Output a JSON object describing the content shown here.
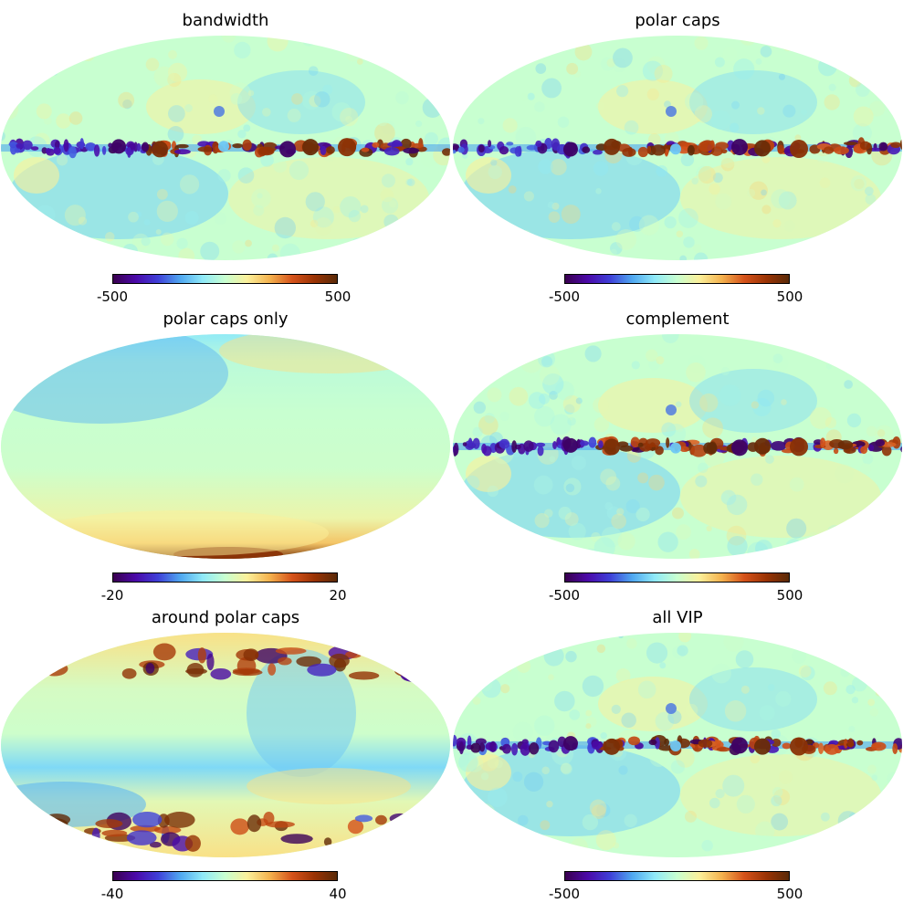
{
  "colormap": [
    "#3a004f",
    "#4b09a8",
    "#3f3fd8",
    "#4fa7f0",
    "#8fe9f8",
    "#c8ffd0",
    "#fbf09a",
    "#f4b24e",
    "#d5521a",
    "#9a3304",
    "#5a2a08"
  ],
  "chart_data": [
    {
      "type": "heatmap",
      "projection": "mollweide",
      "title": "bandwidth",
      "vmin": -500,
      "vmax": 500,
      "tick_labels": [
        "-500",
        "500"
      ],
      "pattern": "galactic-plane"
    },
    {
      "type": "heatmap",
      "projection": "mollweide",
      "title": "polar caps",
      "vmin": -500,
      "vmax": 500,
      "tick_labels": [
        "-500",
        "500"
      ],
      "pattern": "galactic-plane"
    },
    {
      "type": "heatmap",
      "projection": "mollweide",
      "title": "polar caps only",
      "vmin": -20,
      "vmax": 20,
      "tick_labels": [
        "-20",
        "20"
      ],
      "pattern": "caps-only"
    },
    {
      "type": "heatmap",
      "projection": "mollweide",
      "title": "complement",
      "vmin": -500,
      "vmax": 500,
      "tick_labels": [
        "-500",
        "500"
      ],
      "pattern": "galactic-plane"
    },
    {
      "type": "heatmap",
      "projection": "mollweide",
      "title": "around polar caps",
      "vmin": -40,
      "vmax": 40,
      "tick_labels": [
        "-40",
        "40"
      ],
      "pattern": "around-caps"
    },
    {
      "type": "heatmap",
      "projection": "mollweide",
      "title": "all VIP",
      "vmin": -500,
      "vmax": 500,
      "tick_labels": [
        "-500",
        "500"
      ],
      "pattern": "galactic-plane"
    }
  ]
}
